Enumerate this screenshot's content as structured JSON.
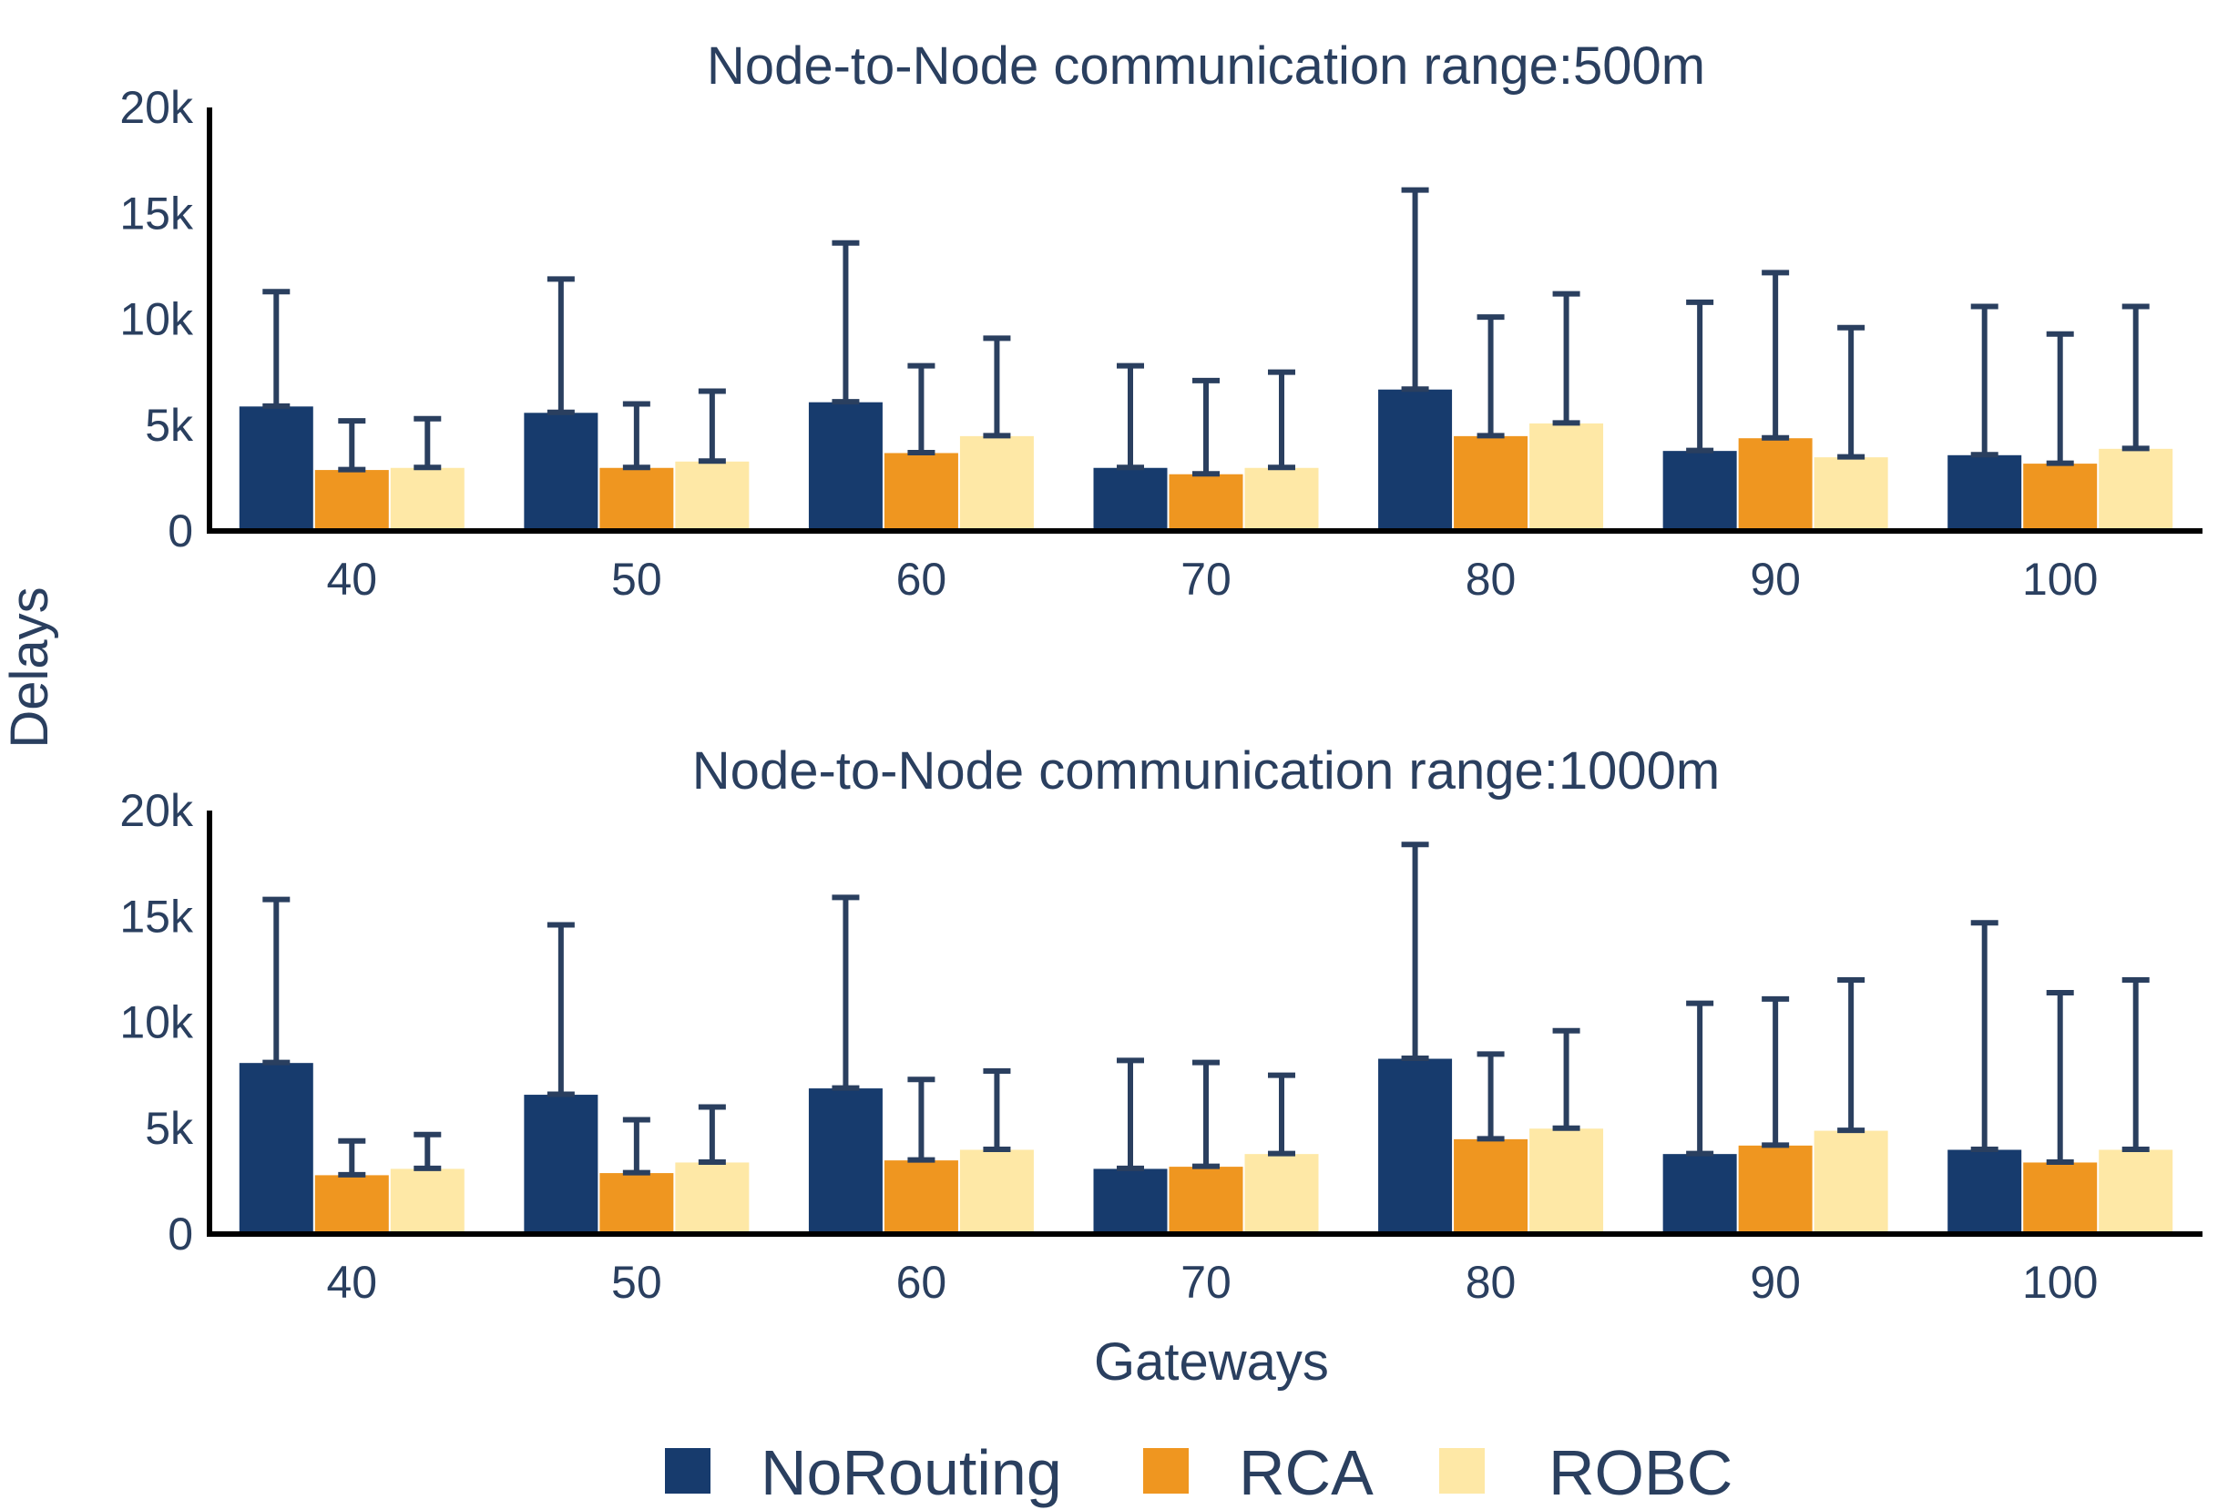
{
  "chart_data": {
    "type": "bar",
    "ylabel": "Delays",
    "xlabel": "Gateways",
    "legend": {
      "placement": "bottom",
      "entries": [
        {
          "name": "NoRouting",
          "color": "#173b6d"
        },
        {
          "name": "RCA",
          "color": "#ef9620"
        },
        {
          "name": "ROBC",
          "color": "#fee8a6"
        }
      ]
    },
    "colors": {
      "axis": "#000000",
      "text": "#2a3f5f",
      "error_bar": "#2a3f5f"
    },
    "subplots": [
      {
        "title": "Node-to-Node communication range:500m",
        "categories": [
          "40",
          "50",
          "60",
          "70",
          "80",
          "90",
          "100"
        ],
        "ylim": [
          0,
          20000
        ],
        "yticks": [
          0,
          5000,
          10000,
          15000,
          20000
        ],
        "ytick_labels": [
          "0",
          "5k",
          "10k",
          "15k",
          "20k"
        ],
        "series": [
          {
            "name": "NoRouting",
            "values": [
              5900,
              5600,
              6100,
              3000,
              6700,
              3800,
              3600
            ],
            "error_plus": [
              5400,
              6300,
              7500,
              4800,
              9400,
              7000,
              7000
            ]
          },
          {
            "name": "RCA",
            "values": [
              2900,
              3000,
              3700,
              2700,
              4500,
              4400,
              3200
            ],
            "error_plus": [
              2300,
              3000,
              4100,
              4400,
              5600,
              7800,
              6100
            ]
          },
          {
            "name": "ROBC",
            "values": [
              3000,
              3300,
              4500,
              3000,
              5100,
              3500,
              3900
            ],
            "error_plus": [
              2300,
              3300,
              4600,
              4500,
              6100,
              6100,
              6700
            ]
          }
        ]
      },
      {
        "title": "Node-to-Node communication range:1000m",
        "categories": [
          "40",
          "50",
          "60",
          "70",
          "80",
          "90",
          "100"
        ],
        "ylim": [
          0,
          20000
        ],
        "yticks": [
          0,
          5000,
          10000,
          15000,
          20000
        ],
        "ytick_labels": [
          "0",
          "5k",
          "10k",
          "15k",
          "20k"
        ],
        "series": [
          {
            "name": "NoRouting",
            "values": [
              8100,
              6600,
              6900,
              3100,
              8300,
              3800,
              4000
            ],
            "error_plus": [
              7700,
              8000,
              9000,
              5100,
              10100,
              7100,
              10700
            ]
          },
          {
            "name": "RCA",
            "values": [
              2800,
              2900,
              3500,
              3200,
              4500,
              4200,
              3400
            ],
            "error_plus": [
              1600,
              2500,
              3800,
              4900,
              4000,
              6900,
              8000
            ]
          },
          {
            "name": "ROBC",
            "values": [
              3100,
              3400,
              4000,
              3800,
              5000,
              4900,
              4000
            ],
            "error_plus": [
              1600,
              2600,
              3700,
              3700,
              4600,
              7100,
              8000
            ]
          }
        ]
      }
    ]
  }
}
